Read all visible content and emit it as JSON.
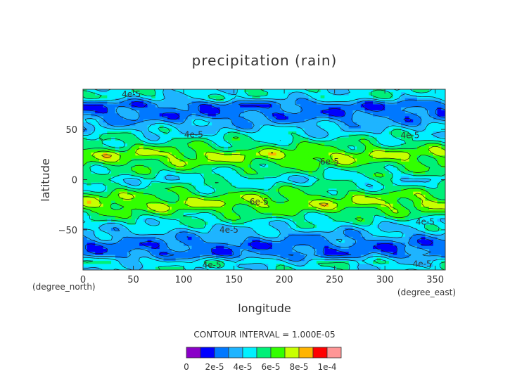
{
  "chart_data": {
    "type": "heatmap",
    "title": "precipitation (rain)",
    "xlabel": "longitude",
    "ylabel": "latitude",
    "x_unit": "(degree_east)",
    "y_unit": "(degree_north)",
    "xlim": [
      0,
      360
    ],
    "ylim": [
      -90,
      90
    ],
    "x_ticks": [
      0,
      50,
      100,
      150,
      200,
      250,
      300,
      350
    ],
    "y_ticks": [
      -50,
      0,
      50
    ],
    "contour_interval_text": "CONTOUR INTERVAL = 1.000E-05",
    "contour_labels": [
      {
        "text": "4e-5",
        "x": 48,
        "y": 85
      },
      {
        "text": "4e-5",
        "x": 110,
        "y": 45
      },
      {
        "text": "4e-5",
        "x": 325,
        "y": 44
      },
      {
        "text": "6e-5",
        "x": 245,
        "y": 18
      },
      {
        "text": "6e-5",
        "x": 175,
        "y": -22
      },
      {
        "text": "4e-5",
        "x": 145,
        "y": -50
      },
      {
        "text": "4e-5",
        "x": 340,
        "y": -42
      },
      {
        "text": "4e-5",
        "x": 128,
        "y": -85
      },
      {
        "text": "4e-5",
        "x": 337,
        "y": -84
      }
    ],
    "zonal_profile": {
      "latitude": [
        -90,
        -82,
        -75,
        -65,
        -55,
        -45,
        -35,
        -25,
        -18,
        -10,
        0,
        10,
        18,
        25,
        35,
        45,
        55,
        65,
        75,
        82,
        90
      ],
      "value": [
        4.5e-05,
        4.5e-05,
        2.5e-05,
        2.5e-05,
        3.5e-05,
        4.5e-05,
        5.5e-05,
        7e-05,
        6.5e-05,
        5.5e-05,
        4.5e-05,
        5.5e-05,
        6.5e-05,
        7e-05,
        5.5e-05,
        4.5e-05,
        3.5e-05,
        2.5e-05,
        2.5e-05,
        4.5e-05,
        4.5e-05
      ]
    },
    "colorbar": {
      "levels": [
        0,
        1e-05,
        2e-05,
        3e-05,
        4e-05,
        5e-05,
        6e-05,
        7e-05,
        8e-05,
        9e-05,
        0.0001
      ],
      "colors": [
        "#8a00c8",
        "#0000ff",
        "#0078ff",
        "#1eb4ff",
        "#00f0ff",
        "#00f078",
        "#32ff00",
        "#c8ff00",
        "#ffb400",
        "#ff0000",
        "#ff9696"
      ],
      "tick_labels": [
        "0",
        "2e-5",
        "4e-5",
        "6e-5",
        "8e-5",
        "1e-4"
      ]
    }
  }
}
